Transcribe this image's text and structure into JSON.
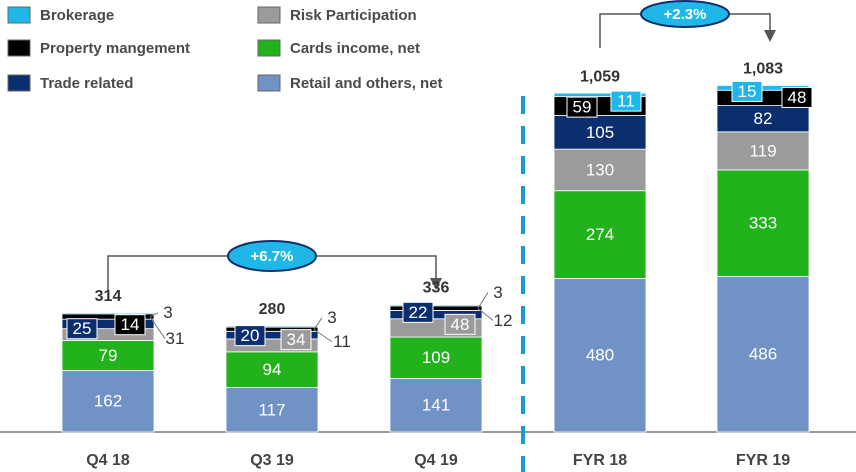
{
  "chart_data": {
    "type": "stacked_bar",
    "categories": [
      "Q4 18",
      "Q3 19",
      "Q4 19",
      "FYR 18",
      "FYR 19"
    ],
    "category_axis": [
      "y",
      "y",
      "y",
      "y2",
      "y2"
    ],
    "ylim": [
      0,
      1137
    ],
    "y2lim": [
      0,
      1350
    ],
    "series": [
      {
        "name": "Retail and others, net",
        "color": "#7192c4",
        "values": [
          162,
          117,
          141,
          480,
          486
        ]
      },
      {
        "name": "Cards income, net",
        "color": "#22b21c",
        "values": [
          79,
          94,
          109,
          274,
          333
        ]
      },
      {
        "name": "Risk Participation",
        "color": "#9b9b9b",
        "values": [
          31,
          34,
          48,
          130,
          119
        ]
      },
      {
        "name": "Trade related",
        "color": "#0b2e6e",
        "values": [
          25,
          20,
          22,
          105,
          82
        ]
      },
      {
        "name": "Property mangement",
        "color": "#000000",
        "values": [
          14,
          11,
          12,
          59,
          48
        ]
      },
      {
        "name": "Brokerage",
        "color": "#1fb6e8",
        "values": [
          3,
          3,
          3,
          11,
          15
        ]
      }
    ],
    "totals": {
      "values": [
        314,
        280,
        336,
        1059,
        1083
      ],
      "value_labels": [
        "314",
        "280",
        "336",
        "1,059",
        "1,083"
      ]
    },
    "annotations": [
      "+6.7%",
      "+2.3%"
    ]
  }
}
